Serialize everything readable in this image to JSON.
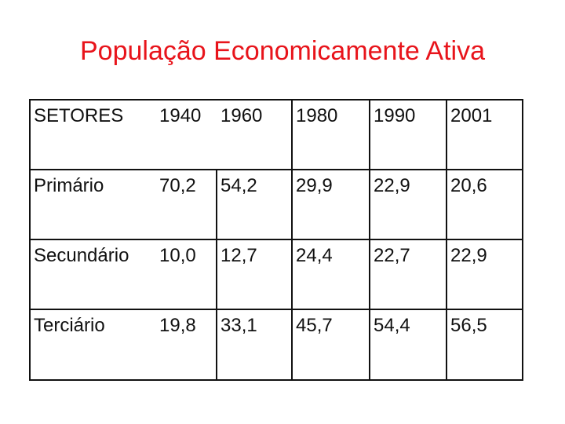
{
  "header": {
    "title": "População Economicamente Ativa"
  },
  "table": {
    "columns": [
      "SETORES",
      "1940",
      "1960",
      "1980",
      "1990",
      "2001"
    ],
    "rows": [
      [
        "Primário",
        "70,2",
        "54,2",
        "29,9",
        "22,9",
        "20,6"
      ],
      [
        "Secundário",
        "10,0",
        "12,7",
        "24,4",
        "22,7",
        "22,9"
      ],
      [
        "Terciário",
        "19,8",
        "33,1",
        "45,7",
        "54,4",
        "56,5"
      ]
    ]
  }
}
